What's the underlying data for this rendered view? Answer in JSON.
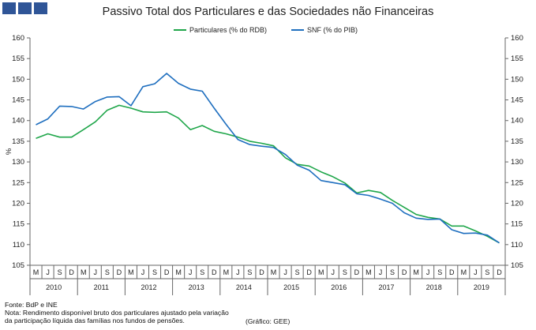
{
  "header": {
    "title": "Passivo Total dos Particulares e das Sociedades não Financeiras",
    "logo_color": "#2f5597"
  },
  "chart_data": {
    "type": "line",
    "title": "Passivo Total dos Particulares e das Sociedades não Financeiras",
    "ylabel": "%",
    "ylim": [
      105,
      160
    ],
    "yticks": [
      105,
      110,
      115,
      120,
      125,
      130,
      135,
      140,
      145,
      150,
      155,
      160
    ],
    "grid": false,
    "legend": "top-center",
    "quarter_labels": [
      "M",
      "J",
      "S",
      "D"
    ],
    "years": [
      "2010",
      "2011",
      "2012",
      "2013",
      "2014",
      "2015",
      "2016",
      "2017",
      "2018",
      "2019"
    ],
    "series": [
      {
        "name": "Particulares (% do RDB)",
        "color": "#1fa64a",
        "values": [
          135.7,
          136.8,
          136.0,
          136.0,
          137.8,
          139.7,
          142.5,
          143.7,
          143.0,
          142.1,
          142.0,
          142.1,
          140.6,
          137.8,
          138.8,
          137.4,
          136.8,
          136.0,
          135.0,
          134.5,
          133.9,
          131.0,
          129.4,
          129.0,
          127.6,
          126.4,
          124.9,
          122.5,
          123.1,
          122.6,
          120.7,
          119.0,
          117.3,
          116.6,
          116.2,
          114.5,
          114.5,
          113.3,
          112.0,
          110.4
        ]
      },
      {
        "name": "SNF (% do PIB)",
        "color": "#1f6fbf",
        "values": [
          139.0,
          140.4,
          143.5,
          143.4,
          142.8,
          144.6,
          145.7,
          145.8,
          143.6,
          148.2,
          148.9,
          151.4,
          149.0,
          147.6,
          147.1,
          143.0,
          139.1,
          135.4,
          134.2,
          133.8,
          133.5,
          131.8,
          129.2,
          128.0,
          125.5,
          125.0,
          124.5,
          122.3,
          121.9,
          121.0,
          120.0,
          117.7,
          116.4,
          116.1,
          116.2,
          113.6,
          112.7,
          112.8,
          112.3,
          110.4
        ]
      }
    ]
  },
  "footer": {
    "source": "Fonte: BdP e INE",
    "note_line1": "Nota: Rendimento disponível bruto dos particulares ajustado pela variação",
    "note_line2": "da participação líquida das famílias nos fundos de pensões.",
    "credit": "(Gráfico: GEE)"
  }
}
